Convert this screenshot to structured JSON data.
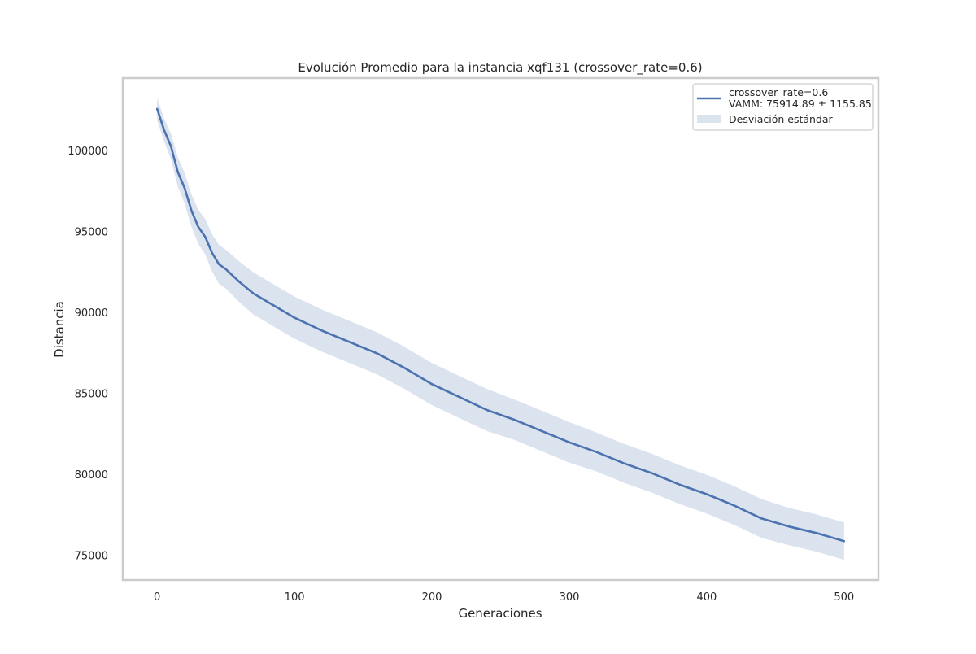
{
  "chart_data": {
    "type": "line",
    "title": "Evolución Promedio para la instancia xqf131 (crossover_rate=0.6)",
    "xlabel": "Generaciones",
    "ylabel": "Distancia",
    "xlim": [
      -25,
      525
    ],
    "ylim": [
      73500,
      104500
    ],
    "xticks": [
      0,
      100,
      200,
      300,
      400,
      500
    ],
    "yticks": [
      75000,
      80000,
      85000,
      90000,
      95000,
      100000
    ],
    "xtick_labels": [
      "0",
      "100",
      "200",
      "300",
      "400",
      "500"
    ],
    "ytick_labels": [
      "75000",
      "80000",
      "85000",
      "90000",
      "95000",
      "100000"
    ],
    "grid": false,
    "legend_position": "top-right",
    "colors": {
      "line": "#4c72b0",
      "band": "#4c72b0",
      "frame": "#cccccc"
    },
    "series": [
      {
        "name": "crossover_rate=0.6",
        "label_line2": "VAMM: 75914.89 ± 1155.85",
        "x": [
          0,
          5,
          10,
          15,
          20,
          25,
          30,
          35,
          40,
          45,
          50,
          60,
          70,
          80,
          90,
          100,
          120,
          140,
          160,
          180,
          200,
          220,
          240,
          260,
          280,
          300,
          320,
          340,
          360,
          380,
          400,
          420,
          440,
          460,
          480,
          500
        ],
        "y": [
          102600,
          101300,
          100300,
          98700,
          97700,
          96300,
          95300,
          94700,
          93700,
          93000,
          92700,
          91900,
          91200,
          90700,
          90200,
          89700,
          88900,
          88200,
          87500,
          86600,
          85600,
          84800,
          84000,
          83400,
          82700,
          82000,
          81400,
          80700,
          80100,
          79400,
          78800,
          78100,
          77300,
          76800,
          76400,
          75900
        ],
        "std": [
          700,
          700,
          800,
          900,
          950,
          1000,
          1050,
          1100,
          1150,
          1200,
          1200,
          1250,
          1300,
          1300,
          1300,
          1300,
          1300,
          1300,
          1300,
          1300,
          1300,
          1300,
          1300,
          1250,
          1250,
          1250,
          1200,
          1200,
          1200,
          1200,
          1200,
          1200,
          1200,
          1150,
          1150,
          1150
        ]
      }
    ],
    "band_label": "Desviación estándar"
  }
}
